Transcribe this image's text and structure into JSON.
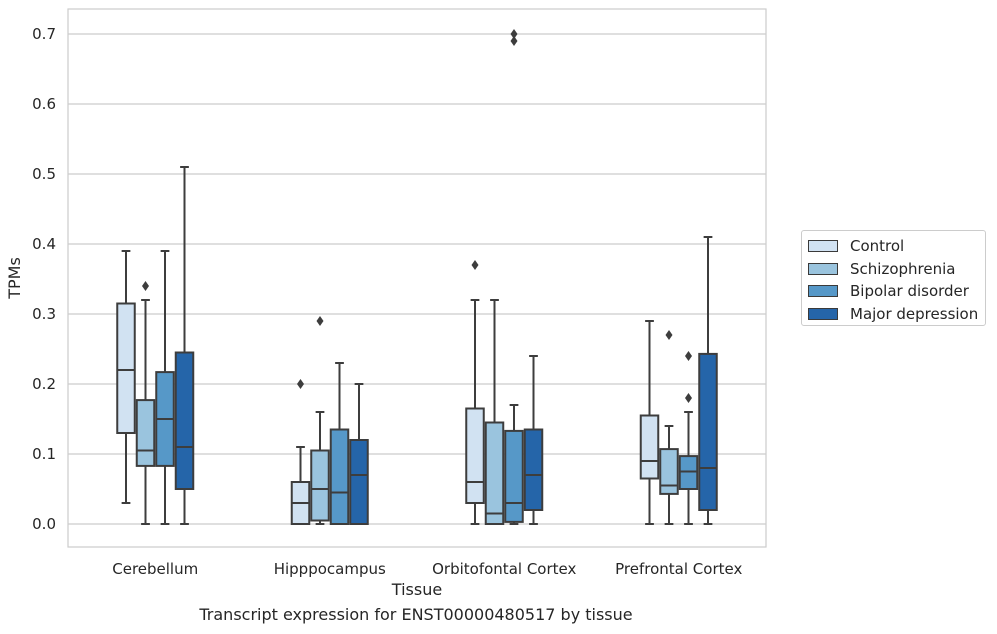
{
  "chart_data": {
    "type": "box",
    "title": "",
    "caption": "Transcript expression for ENST00000480517 by tissue",
    "xlabel": "Tissue",
    "ylabel": "TPMs",
    "ylim": [
      -0.035,
      0.735
    ],
    "yticks": [
      "0.0",
      "0.1",
      "0.2",
      "0.3",
      "0.4",
      "0.5",
      "0.6",
      "0.7"
    ],
    "categories": [
      "Cerebellum",
      "Hipppocampus",
      "Orbitofontal Cortex",
      "Prefrontal Cortex"
    ],
    "grid": true,
    "legend_position": "right",
    "series": [
      {
        "name": "Control",
        "color": "#d1e2f2",
        "boxes": [
          {
            "whislo": 0.03,
            "q1": 0.13,
            "med": 0.22,
            "q3": 0.315,
            "whishi": 0.39,
            "fliers": []
          },
          {
            "whislo": 0.0,
            "q1": 0.0,
            "med": 0.03,
            "q3": 0.06,
            "whishi": 0.11,
            "fliers": [
              0.2
            ]
          },
          {
            "whislo": 0.0,
            "q1": 0.03,
            "med": 0.06,
            "q3": 0.165,
            "whishi": 0.32,
            "fliers": [
              0.37
            ]
          },
          {
            "whislo": 0.0,
            "q1": 0.065,
            "med": 0.09,
            "q3": 0.155,
            "whishi": 0.29,
            "fliers": []
          }
        ]
      },
      {
        "name": "Schizophrenia",
        "color": "#9ac4de",
        "boxes": [
          {
            "whislo": 0.0,
            "q1": 0.083,
            "med": 0.105,
            "q3": 0.177,
            "whishi": 0.32,
            "fliers": [
              0.34
            ]
          },
          {
            "whislo": 0.0,
            "q1": 0.005,
            "med": 0.05,
            "q3": 0.105,
            "whishi": 0.16,
            "fliers": [
              0.29
            ]
          },
          {
            "whislo": 0.0,
            "q1": 0.0,
            "med": 0.015,
            "q3": 0.145,
            "whishi": 0.32,
            "fliers": []
          },
          {
            "whislo": 0.0,
            "q1": 0.043,
            "med": 0.055,
            "q3": 0.107,
            "whishi": 0.14,
            "fliers": [
              0.27
            ]
          }
        ]
      },
      {
        "name": "Bipolar disorder",
        "color": "#5698c8",
        "boxes": [
          {
            "whislo": 0.0,
            "q1": 0.083,
            "med": 0.15,
            "q3": 0.217,
            "whishi": 0.39,
            "fliers": []
          },
          {
            "whislo": 0.0,
            "q1": 0.0,
            "med": 0.045,
            "q3": 0.135,
            "whishi": 0.23,
            "fliers": []
          },
          {
            "whislo": 0.0,
            "q1": 0.003,
            "med": 0.03,
            "q3": 0.133,
            "whishi": 0.17,
            "fliers": [
              0.69,
              0.7
            ]
          },
          {
            "whislo": 0.0,
            "q1": 0.05,
            "med": 0.075,
            "q3": 0.097,
            "whishi": 0.16,
            "fliers": [
              0.18,
              0.24
            ]
          }
        ]
      },
      {
        "name": "Major depression",
        "color": "#2565a9",
        "boxes": [
          {
            "whislo": 0.0,
            "q1": 0.05,
            "med": 0.11,
            "q3": 0.245,
            "whishi": 0.51,
            "fliers": []
          },
          {
            "whislo": 0.0,
            "q1": 0.0,
            "med": 0.07,
            "q3": 0.12,
            "whishi": 0.2,
            "fliers": []
          },
          {
            "whislo": 0.0,
            "q1": 0.02,
            "med": 0.07,
            "q3": 0.135,
            "whishi": 0.24,
            "fliers": []
          },
          {
            "whislo": 0.0,
            "q1": 0.02,
            "med": 0.08,
            "q3": 0.243,
            "whishi": 0.41,
            "fliers": []
          }
        ]
      }
    ]
  }
}
